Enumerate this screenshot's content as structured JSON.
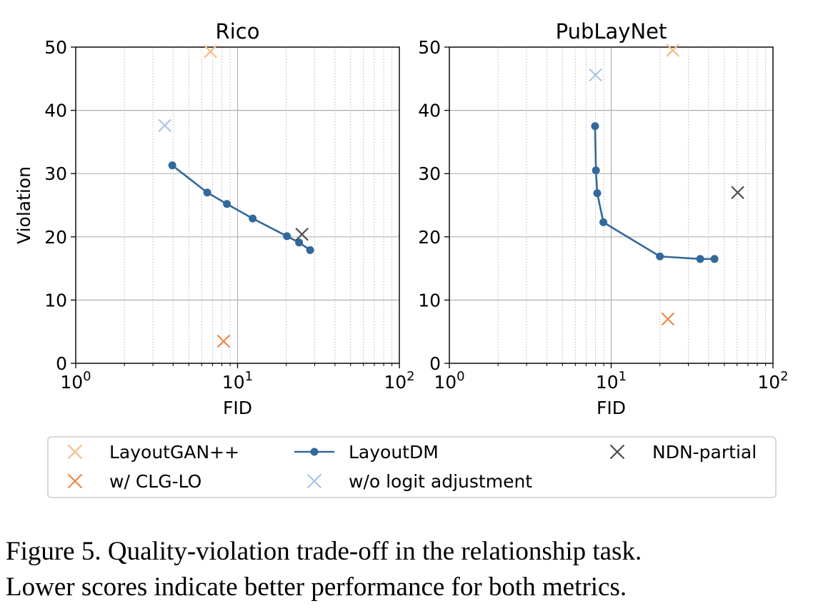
{
  "chart_data": [
    {
      "type": "scatter",
      "title": "Rico",
      "xlabel": "FID",
      "ylabel": "Violation",
      "xscale": "log",
      "xlim": [
        1,
        100
      ],
      "ylim": [
        0,
        50
      ],
      "xtick_base": "10",
      "xtick_exponents": [
        "0",
        "1",
        "2"
      ],
      "yticks": [
        "0",
        "10",
        "20",
        "30",
        "40",
        "50"
      ],
      "grid": true,
      "series": [
        {
          "name": "LayoutGAN++",
          "marker": "x",
          "x": [
            6.8
          ],
          "y": [
            49.3
          ]
        },
        {
          "name": "w/ CLG-LO",
          "marker": "x",
          "x": [
            8.2
          ],
          "y": [
            3.5
          ]
        },
        {
          "name": "LayoutDM",
          "marker": "o-line",
          "x": [
            3.95,
            6.5,
            8.6,
            12.4,
            20.2,
            24.0,
            28.1
          ],
          "y": [
            31.3,
            27.0,
            25.2,
            22.9,
            20.1,
            19.1,
            17.9
          ]
        },
        {
          "name": "w/o logit adjustment",
          "marker": "x",
          "x": [
            3.55
          ],
          "y": [
            37.6
          ]
        },
        {
          "name": "NDN-partial",
          "marker": "x",
          "x": [
            25.0
          ],
          "y": [
            20.4
          ]
        }
      ]
    },
    {
      "type": "scatter",
      "title": "PubLayNet",
      "xlabel": "FID",
      "ylabel": "",
      "xscale": "log",
      "xlim": [
        1,
        100
      ],
      "ylim": [
        0,
        50
      ],
      "xtick_base": "10",
      "xtick_exponents": [
        "0",
        "1",
        "2"
      ],
      "yticks": [
        "0",
        "10",
        "20",
        "30",
        "40",
        "50"
      ],
      "grid": true,
      "series": [
        {
          "name": "LayoutGAN++",
          "marker": "x",
          "x": [
            24.0
          ],
          "y": [
            49.5
          ]
        },
        {
          "name": "w/ CLG-LO",
          "marker": "x",
          "x": [
            22.4
          ],
          "y": [
            7.0
          ]
        },
        {
          "name": "LayoutDM",
          "marker": "o-line",
          "x": [
            7.95,
            8.05,
            8.2,
            8.95,
            20.0,
            35.5,
            43.5
          ],
          "y": [
            37.5,
            30.5,
            26.9,
            22.3,
            16.9,
            16.5,
            16.5
          ]
        },
        {
          "name": "w/o logit adjustment",
          "marker": "x",
          "x": [
            8.0
          ],
          "y": [
            45.6
          ]
        },
        {
          "name": "NDN-partial",
          "marker": "x",
          "x": [
            60.5
          ],
          "y": [
            27.0
          ]
        }
      ]
    }
  ],
  "legend": {
    "placement": "bottom",
    "entries": [
      {
        "label": "LayoutGAN++",
        "marker": "x",
        "color": "#f5bd88"
      },
      {
        "label": "LayoutDM",
        "marker": "o-line",
        "color": "#33689b"
      },
      {
        "label": "NDN-partial",
        "marker": "x",
        "color": "#4d4d4d"
      },
      {
        "label": " w/ CLG-LO",
        "marker": "x",
        "color": "#ec8747"
      },
      {
        "label": " w/o logit adjustment",
        "marker": "x",
        "color": "#a9c6e4"
      }
    ]
  },
  "colors": {
    "LayoutGAN++": "#f5bd88",
    "w/ CLG-LO": "#ec8747",
    "LayoutDM": "#33689b",
    "w/o logit adjustment": "#a9c6e4",
    "NDN-partial": "#4d4d4d"
  },
  "caption": {
    "line1": "Figure 5.  Quality-violation trade-off in the relationship task.",
    "line2": "Lower scores indicate better performance for both metrics."
  }
}
